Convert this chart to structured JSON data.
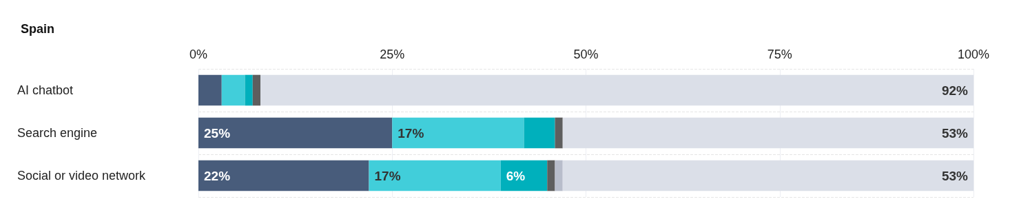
{
  "chart_data": {
    "type": "bar",
    "title": "Spain",
    "orientation": "horizontal",
    "stacked": true,
    "categories": [
      "AI chatbot",
      "Search engine",
      "Social or video network"
    ],
    "series": [
      {
        "color": "#485c7b",
        "values": [
          3,
          25,
          22
        ],
        "value_labels": [
          null,
          "25%",
          "22%"
        ]
      },
      {
        "color": "#41ceda",
        "values": [
          3,
          17,
          17
        ],
        "value_labels": [
          null,
          "17%",
          "17%"
        ]
      },
      {
        "color": "#00b0bc",
        "values": [
          1,
          4,
          6
        ],
        "value_labels": [
          null,
          null,
          "6%"
        ]
      },
      {
        "color": "#5e5e5e",
        "values": [
          1,
          1,
          1
        ]
      },
      {
        "color": "#b8bdcb",
        "values": [
          0,
          0,
          1
        ]
      },
      {
        "color": "#dbdfe8",
        "values": [
          92,
          53,
          53
        ],
        "value_labels": [
          "92%",
          "53%",
          "53%"
        ]
      }
    ],
    "xlim": [
      0,
      100
    ],
    "xticks": [
      {
        "value": 0,
        "label": "0%"
      },
      {
        "value": 25,
        "label": "25%"
      },
      {
        "value": 50,
        "label": "50%"
      },
      {
        "value": 75,
        "label": "75%"
      },
      {
        "value": 100,
        "label": "100%"
      }
    ],
    "grid": "x"
  }
}
